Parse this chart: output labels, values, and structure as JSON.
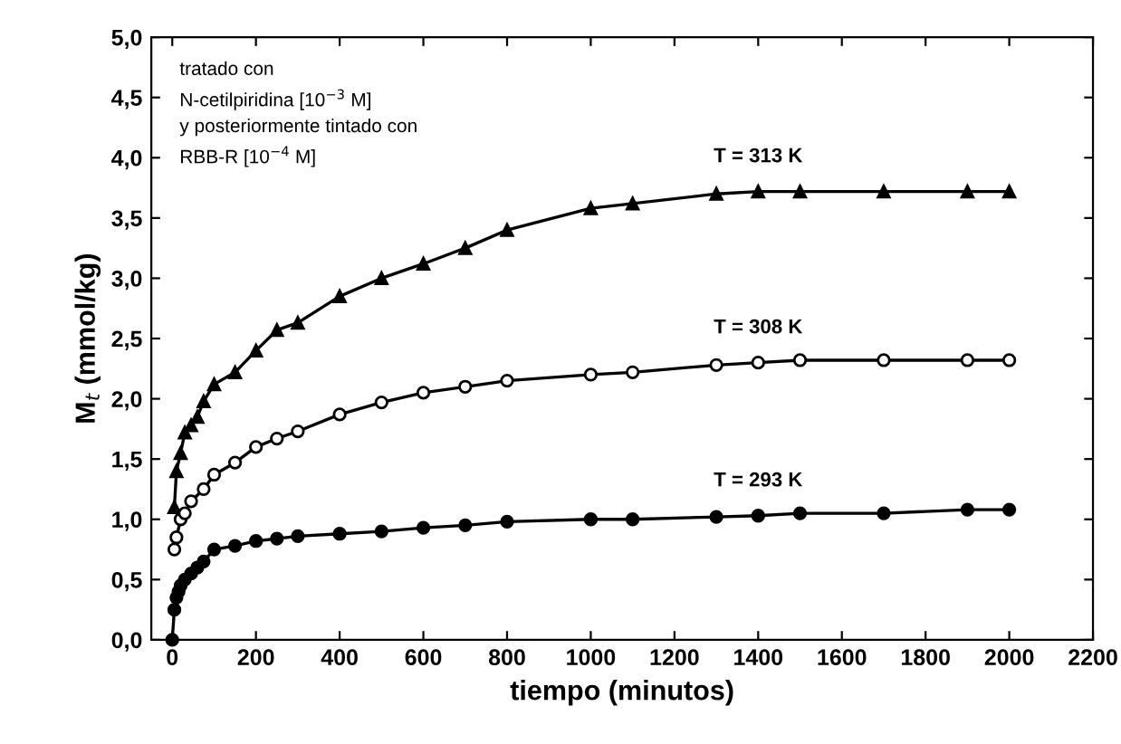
{
  "chart_data": {
    "type": "line",
    "xlabel": "tiempo (minutos)",
    "ylabel": "M$_{t}$ (mmol/kg)",
    "xlim": [
      -50,
      2200
    ],
    "ylim": [
      0,
      5
    ],
    "xticks": [
      0,
      200,
      400,
      600,
      800,
      1000,
      1200,
      1400,
      1600,
      1800,
      2000,
      2200
    ],
    "yticks": [
      {
        "value": 0,
        "label": "0,0"
      },
      {
        "value": 0.5,
        "label": "0,5"
      },
      {
        "value": 1,
        "label": "1,0"
      },
      {
        "value": 1.5,
        "label": "1,5"
      },
      {
        "value": 2,
        "label": "2,0"
      },
      {
        "value": 2.5,
        "label": "2,5"
      },
      {
        "value": 3,
        "label": "3,0"
      },
      {
        "value": 3.5,
        "label": "3,5"
      },
      {
        "value": 4,
        "label": "4,0"
      },
      {
        "value": 4.5,
        "label": "4,5"
      },
      {
        "value": 5,
        "label": "5,0"
      }
    ],
    "grid": false,
    "legend": false,
    "line_style": "solid",
    "annotations": [
      "tratado con\nN-cetilpiridina [10$^{−3}$ M]\ny posteriormente tintado con\nRBB-R [10$^{−4}$ M]"
    ],
    "series": [
      {
        "name": "T = 313 K",
        "color": "#000000",
        "marker": "triangle",
        "x": [
          5,
          10,
          20,
          30,
          45,
          60,
          75,
          100,
          150,
          200,
          250,
          300,
          400,
          500,
          600,
          700,
          800,
          1000,
          1100,
          1300,
          1400,
          1500,
          1700,
          1900,
          2000
        ],
        "values": [
          1.1,
          1.4,
          1.55,
          1.72,
          1.78,
          1.85,
          1.98,
          2.12,
          2.22,
          2.4,
          2.57,
          2.63,
          2.85,
          3.0,
          3.12,
          3.25,
          3.4,
          3.58,
          3.62,
          3.7,
          3.72,
          3.72,
          3.72,
          3.72,
          3.72
        ]
      },
      {
        "name": "T = 308 K",
        "color": "#000000",
        "marker": "circle",
        "x": [
          5,
          10,
          20,
          30,
          45,
          75,
          100,
          150,
          200,
          250,
          300,
          400,
          500,
          600,
          700,
          800,
          1000,
          1100,
          1300,
          1400,
          1500,
          1700,
          1900,
          2000
        ],
        "values": [
          0.75,
          0.85,
          1.0,
          1.05,
          1.15,
          1.25,
          1.37,
          1.47,
          1.6,
          1.67,
          1.73,
          1.87,
          1.97,
          2.05,
          2.1,
          2.15,
          2.2,
          2.22,
          2.28,
          2.3,
          2.32,
          2.32,
          2.32,
          2.32
        ]
      },
      {
        "name": "T = 293 K",
        "color": "#000000",
        "marker": "circle",
        "x": [
          0,
          5,
          10,
          15,
          20,
          30,
          45,
          60,
          75,
          100,
          150,
          200,
          250,
          300,
          400,
          500,
          600,
          700,
          800,
          1000,
          1100,
          1300,
          1400,
          1500,
          1700,
          1900,
          2000
        ],
        "values": [
          0,
          0.25,
          0.35,
          0.4,
          0.45,
          0.5,
          0.55,
          0.6,
          0.65,
          0.75,
          0.78,
          0.82,
          0.84,
          0.86,
          0.88,
          0.9,
          0.93,
          0.95,
          0.98,
          1.0,
          1.0,
          1.02,
          1.03,
          1.05,
          1.05,
          1.08,
          1.08
        ]
      }
    ]
  }
}
